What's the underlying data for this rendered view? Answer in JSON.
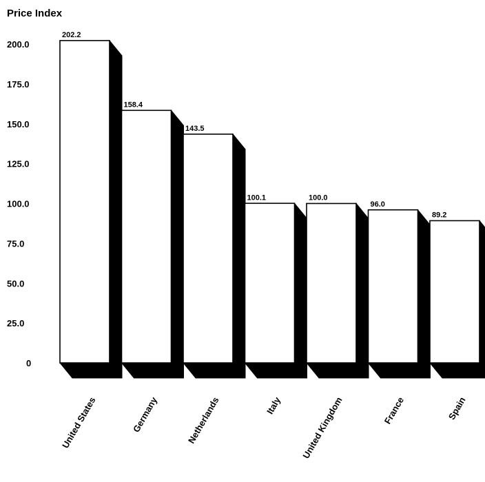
{
  "chart_data": {
    "type": "bar",
    "ylabel": "Price Index",
    "categories": [
      "United States",
      "Germany",
      "Netherlands",
      "Italy",
      "United Kingdom",
      "France",
      "Spain"
    ],
    "values": [
      202.2,
      158.4,
      143.5,
      100.1,
      100.0,
      96.0,
      89.2
    ],
    "data_labels": [
      "202.2",
      "158.4",
      "143.5",
      "100.1",
      "100.0",
      "96.0",
      "89.2"
    ],
    "y_ticks": [
      "0",
      "25.0",
      "50.0",
      "75.0",
      "100.0",
      "125.0",
      "150.0",
      "175.0",
      "200.0"
    ],
    "ylim": [
      0,
      200
    ],
    "grid": false,
    "style": "3d-extruded",
    "colors": {
      "bar_face": "#ffffff",
      "bar_shadow": "#000000",
      "outline": "#000000"
    }
  }
}
